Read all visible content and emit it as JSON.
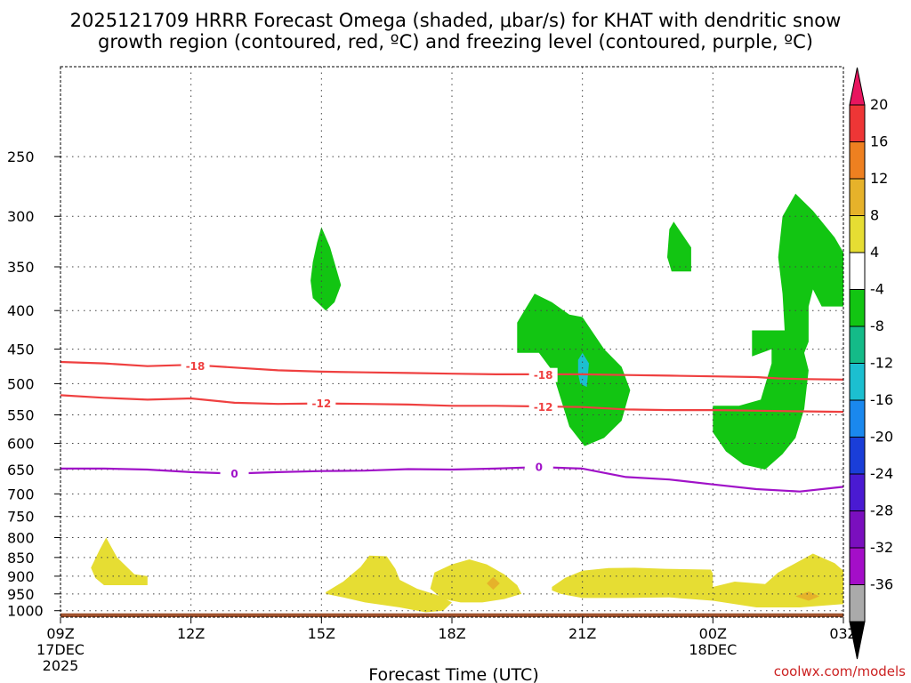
{
  "chart_data": {
    "type": "time-height cross section",
    "title_lines": [
      "2025121709 HRRR Forecast Omega (shaded, μbar/s) for KHAT with dendritic snow",
      "growth region (contoured, red, ºC) and freezing level (contoured, purple, ºC)"
    ],
    "xlabel": "Forecast Time (UTC)",
    "x_unit": "hours since 09Z 17DEC 2025",
    "x_range": [
      0,
      18
    ],
    "x_ticks": [
      {
        "h": 0,
        "label": "09Z",
        "sub1": "17DEC",
        "sub2": "2025"
      },
      {
        "h": 3,
        "label": "12Z"
      },
      {
        "h": 6,
        "label": "15Z"
      },
      {
        "h": 9,
        "label": "18Z"
      },
      {
        "h": 12,
        "label": "21Z"
      },
      {
        "h": 15,
        "label": "00Z",
        "sub1": "18DEC"
      },
      {
        "h": 18,
        "label": "03Z"
      }
    ],
    "y_unit": "hPa",
    "y_range": [
      1020,
      190
    ],
    "y_ticks": [
      250,
      300,
      350,
      400,
      450,
      500,
      550,
      600,
      650,
      700,
      750,
      800,
      850,
      900,
      950,
      1000
    ],
    "watermark": "coolwx.com/models",
    "colorbar": {
      "labels": [
        "20",
        "16",
        "12",
        "8",
        "4",
        "-4",
        "-8",
        "-12",
        "-16",
        "-20",
        "-24",
        "-28",
        "-32",
        "-36"
      ],
      "colors": [
        "#e8155f",
        "#ee3636",
        "#ee8020",
        "#e6b22a",
        "#e6dd33",
        "#ffffff",
        "#12c512",
        "#14bb88",
        "#1cbfd0",
        "#1a88ee",
        "#1a3ed8",
        "#4a1ad2",
        "#7a0fbe",
        "#a40ec8",
        "#aaaaaa",
        "#000000"
      ]
    },
    "omega_regions": [
      {
        "value": -6,
        "color": "#12c512",
        "points": [
          [
            5.8,
            345
          ],
          [
            5.9,
            325
          ],
          [
            6.0,
            310
          ],
          [
            6.2,
            330
          ],
          [
            6.45,
            370
          ],
          [
            6.3,
            390
          ],
          [
            6.1,
            400
          ],
          [
            5.8,
            385
          ],
          [
            5.75,
            365
          ]
        ]
      },
      {
        "value": -6,
        "color": "#12c512",
        "points": [
          [
            10.5,
            415
          ],
          [
            10.9,
            380
          ],
          [
            11.3,
            390
          ],
          [
            11.7,
            405
          ],
          [
            12.0,
            408
          ],
          [
            12.5,
            450
          ],
          [
            12.9,
            475
          ],
          [
            13.1,
            510
          ],
          [
            12.9,
            560
          ],
          [
            12.5,
            590
          ],
          [
            12.05,
            605
          ],
          [
            11.7,
            570
          ],
          [
            11.3,
            480
          ],
          [
            11.0,
            455
          ],
          [
            10.5,
            455
          ]
        ]
      },
      {
        "value": -10,
        "color": "#1cbfd0",
        "points": [
          [
            11.9,
            465
          ],
          [
            12.0,
            455
          ],
          [
            12.15,
            470
          ],
          [
            12.1,
            505
          ],
          [
            11.95,
            500
          ],
          [
            11.9,
            485
          ]
        ]
      },
      {
        "value": -6,
        "color": "#12c512",
        "points": [
          [
            14.0,
            312
          ],
          [
            14.1,
            305
          ],
          [
            14.5,
            330
          ],
          [
            14.5,
            355
          ],
          [
            14.05,
            355
          ],
          [
            13.95,
            340
          ]
        ]
      },
      {
        "value": -6,
        "color": "#12c512",
        "points": [
          [
            16.6,
            300
          ],
          [
            16.9,
            280
          ],
          [
            17.3,
            295
          ],
          [
            17.8,
            320
          ],
          [
            18.0,
            335
          ],
          [
            18.0,
            395
          ],
          [
            17.5,
            395
          ],
          [
            17.3,
            375
          ],
          [
            17.2,
            395
          ],
          [
            17.2,
            440
          ],
          [
            17.1,
            455
          ],
          [
            17.2,
            480
          ],
          [
            17.1,
            540
          ],
          [
            16.9,
            590
          ],
          [
            16.6,
            620
          ],
          [
            16.2,
            650
          ],
          [
            15.7,
            640
          ],
          [
            15.3,
            615
          ],
          [
            15.0,
            580
          ],
          [
            15.0,
            535
          ],
          [
            15.6,
            535
          ],
          [
            16.1,
            525
          ],
          [
            16.35,
            470
          ],
          [
            16.35,
            450
          ],
          [
            15.9,
            460
          ],
          [
            15.9,
            425
          ],
          [
            16.65,
            425
          ],
          [
            16.6,
            380
          ],
          [
            16.5,
            340
          ]
        ]
      },
      {
        "value": 4,
        "color": "#e6dd33",
        "points": [
          [
            0.7,
            877
          ],
          [
            0.9,
            830
          ],
          [
            1.05,
            800
          ],
          [
            1.3,
            850
          ],
          [
            1.7,
            895
          ],
          [
            2.0,
            900
          ],
          [
            2.0,
            925
          ],
          [
            1.0,
            925
          ],
          [
            0.8,
            905
          ]
        ]
      },
      {
        "value": 4,
        "color": "#e6dd33",
        "points": [
          [
            6.1,
            945
          ],
          [
            6.5,
            915
          ],
          [
            6.9,
            875
          ],
          [
            7.1,
            845
          ],
          [
            7.5,
            847
          ],
          [
            7.7,
            880
          ],
          [
            7.8,
            910
          ],
          [
            8.2,
            935
          ],
          [
            8.7,
            955
          ],
          [
            9.0,
            975
          ],
          [
            8.8,
            1000
          ],
          [
            8.4,
            1005
          ],
          [
            7.8,
            990
          ],
          [
            7.0,
            975
          ],
          [
            6.5,
            960
          ],
          [
            6.1,
            950
          ]
        ]
      },
      {
        "value": 4,
        "color": "#e6dd33",
        "points": [
          [
            8.5,
            935
          ],
          [
            8.6,
            890
          ],
          [
            9.0,
            868
          ],
          [
            9.4,
            855
          ],
          [
            9.8,
            868
          ],
          [
            10.2,
            895
          ],
          [
            10.5,
            925
          ],
          [
            10.6,
            950
          ],
          [
            10.2,
            965
          ],
          [
            9.7,
            975
          ],
          [
            9.2,
            975
          ],
          [
            8.8,
            965
          ],
          [
            8.6,
            945
          ]
        ]
      },
      {
        "value": 8,
        "color": "#e6b22a",
        "points": [
          [
            9.8,
            920
          ],
          [
            9.95,
            902
          ],
          [
            10.1,
            920
          ],
          [
            9.95,
            938
          ]
        ]
      },
      {
        "value": 4,
        "color": "#e6dd33",
        "points": [
          [
            11.3,
            930
          ],
          [
            11.6,
            905
          ],
          [
            12.0,
            885
          ],
          [
            12.6,
            878
          ],
          [
            13.2,
            877
          ],
          [
            13.9,
            880
          ],
          [
            14.95,
            882
          ],
          [
            15.0,
            893
          ],
          [
            15.0,
            930
          ],
          [
            15.5,
            915
          ],
          [
            16.2,
            922
          ],
          [
            16.5,
            890
          ],
          [
            16.9,
            865
          ],
          [
            17.3,
            840
          ],
          [
            17.8,
            865
          ],
          [
            18.0,
            885
          ],
          [
            18.0,
            980
          ],
          [
            17.0,
            990
          ],
          [
            16.0,
            990
          ],
          [
            15.0,
            970
          ],
          [
            14.0,
            960
          ],
          [
            13.0,
            962
          ],
          [
            12.0,
            962
          ],
          [
            11.5,
            950
          ],
          [
            11.3,
            940
          ]
        ]
      },
      {
        "value": 8,
        "color": "#e6b22a",
        "points": [
          [
            16.9,
            957
          ],
          [
            17.2,
            943
          ],
          [
            17.45,
            957
          ],
          [
            17.2,
            970
          ]
        ]
      }
    ],
    "contours": [
      {
        "label": "-18",
        "color": "#ef4040",
        "points": [
          [
            0,
            468
          ],
          [
            1,
            470
          ],
          [
            2,
            474
          ],
          [
            3,
            472
          ],
          [
            4,
            476
          ],
          [
            5,
            480
          ],
          [
            6,
            482
          ],
          [
            7,
            483
          ],
          [
            8,
            484
          ],
          [
            9,
            485
          ],
          [
            10,
            486
          ],
          [
            11,
            486
          ],
          [
            12,
            486
          ],
          [
            13,
            487
          ],
          [
            14,
            488
          ],
          [
            15,
            489
          ],
          [
            16,
            490
          ],
          [
            16.5,
            492
          ],
          [
            17,
            493
          ],
          [
            18,
            494
          ]
        ],
        "labels_at": [
          [
            3.1,
            474
          ],
          [
            11.1,
            487
          ]
        ]
      },
      {
        "label": "-12",
        "color": "#ef4040",
        "points": [
          [
            0,
            518
          ],
          [
            1,
            522
          ],
          [
            2,
            525
          ],
          [
            3,
            523
          ],
          [
            4,
            530
          ],
          [
            5,
            532
          ],
          [
            6,
            531
          ],
          [
            7,
            532
          ],
          [
            8,
            533
          ],
          [
            9,
            535
          ],
          [
            10,
            535
          ],
          [
            11,
            536
          ],
          [
            12,
            537
          ],
          [
            13,
            541
          ],
          [
            14,
            542
          ],
          [
            15,
            542
          ],
          [
            16,
            543
          ],
          [
            17,
            544
          ],
          [
            18,
            545
          ]
        ],
        "labels_at": [
          [
            6.0,
            531
          ],
          [
            11.1,
            537
          ]
        ]
      },
      {
        "label": "0",
        "color": "#a012c8",
        "points": [
          [
            0,
            648
          ],
          [
            1,
            648
          ],
          [
            2,
            650
          ],
          [
            3,
            655
          ],
          [
            4,
            658
          ],
          [
            5,
            655
          ],
          [
            6,
            653
          ],
          [
            7,
            652
          ],
          [
            8,
            649
          ],
          [
            9,
            650
          ],
          [
            10,
            648
          ],
          [
            11,
            645
          ],
          [
            12,
            648
          ],
          [
            13,
            665
          ],
          [
            14,
            670
          ],
          [
            15,
            680
          ],
          [
            16,
            690
          ],
          [
            17,
            695
          ],
          [
            18,
            685
          ]
        ],
        "labels_at": [
          [
            4.0,
            658
          ],
          [
            11.0,
            645
          ]
        ]
      }
    ],
    "terrain": {
      "color": "#a0522d",
      "top_hPa": 1008
    }
  }
}
